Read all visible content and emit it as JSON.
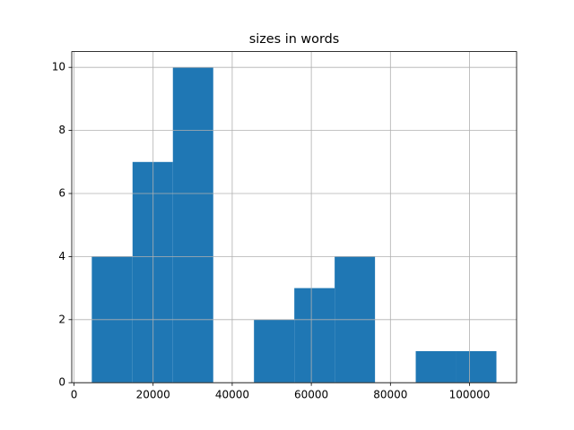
{
  "chart_data": {
    "type": "histogram",
    "title": "sizes in words",
    "bins": [
      4500,
      14800,
      25000,
      35200,
      45500,
      55700,
      65900,
      76100,
      86400,
      96600,
      106800
    ],
    "values": [
      4,
      7,
      10,
      0,
      2,
      3,
      4,
      0,
      1,
      1
    ],
    "color": "#1f77b4",
    "xlim": [
      -570,
      111900
    ],
    "xticks": [
      0,
      20000,
      40000,
      60000,
      80000,
      100000
    ],
    "ylim": [
      0,
      10.5
    ],
    "yticks": [
      0,
      2,
      4,
      6,
      8,
      10
    ],
    "grid": true
  }
}
